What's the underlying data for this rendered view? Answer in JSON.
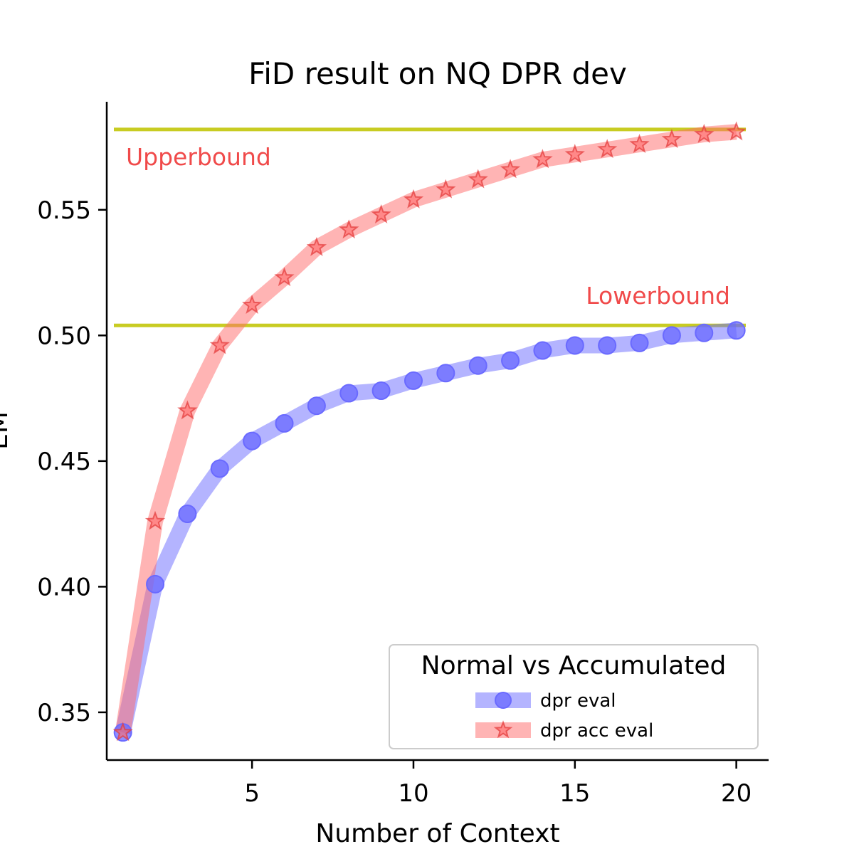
{
  "chart_data": {
    "type": "line",
    "title": "FiD result on NQ DPR dev",
    "xlabel": "Number of Context",
    "ylabel": "EM",
    "xlim": [
      0.5,
      21
    ],
    "ylim": [
      0.331,
      0.593
    ],
    "xticks": [
      5,
      10,
      15,
      20
    ],
    "yticks": [
      0.35,
      0.4,
      0.45,
      0.5,
      0.55
    ],
    "ytick_labels": [
      "0.35",
      "0.40",
      "0.45",
      "0.50",
      "0.55"
    ],
    "xtick_labels": [
      "5",
      "10",
      "15",
      "20"
    ],
    "x": [
      1,
      2,
      3,
      4,
      5,
      6,
      7,
      8,
      9,
      10,
      11,
      12,
      13,
      14,
      15,
      16,
      17,
      18,
      19,
      20
    ],
    "series": [
      {
        "name": "dpr eval",
        "color": "#6a6aff",
        "marker": "circle",
        "values": [
          0.342,
          0.401,
          0.429,
          0.447,
          0.458,
          0.465,
          0.472,
          0.477,
          0.478,
          0.482,
          0.485,
          0.488,
          0.49,
          0.494,
          0.496,
          0.496,
          0.497,
          0.5,
          0.501,
          0.502
        ]
      },
      {
        "name": "dpr acc eval",
        "color": "#ff6a6a",
        "marker": "star",
        "values": [
          0.342,
          0.426,
          0.47,
          0.496,
          0.512,
          0.523,
          0.535,
          0.542,
          0.548,
          0.554,
          0.558,
          0.562,
          0.566,
          0.57,
          0.572,
          0.574,
          0.576,
          0.578,
          0.58,
          0.581
        ]
      }
    ],
    "reference_lines": [
      {
        "label": "Upperbound",
        "y": 0.582,
        "color": "#c8cc22",
        "label_color": "#f04a4a"
      },
      {
        "label": "Lowerbound",
        "y": 0.504,
        "color": "#c8cc22",
        "label_color": "#f04a4a"
      }
    ],
    "legend": {
      "title": "Normal vs Accumulated",
      "placement": "lower-right"
    },
    "grid": false
  }
}
